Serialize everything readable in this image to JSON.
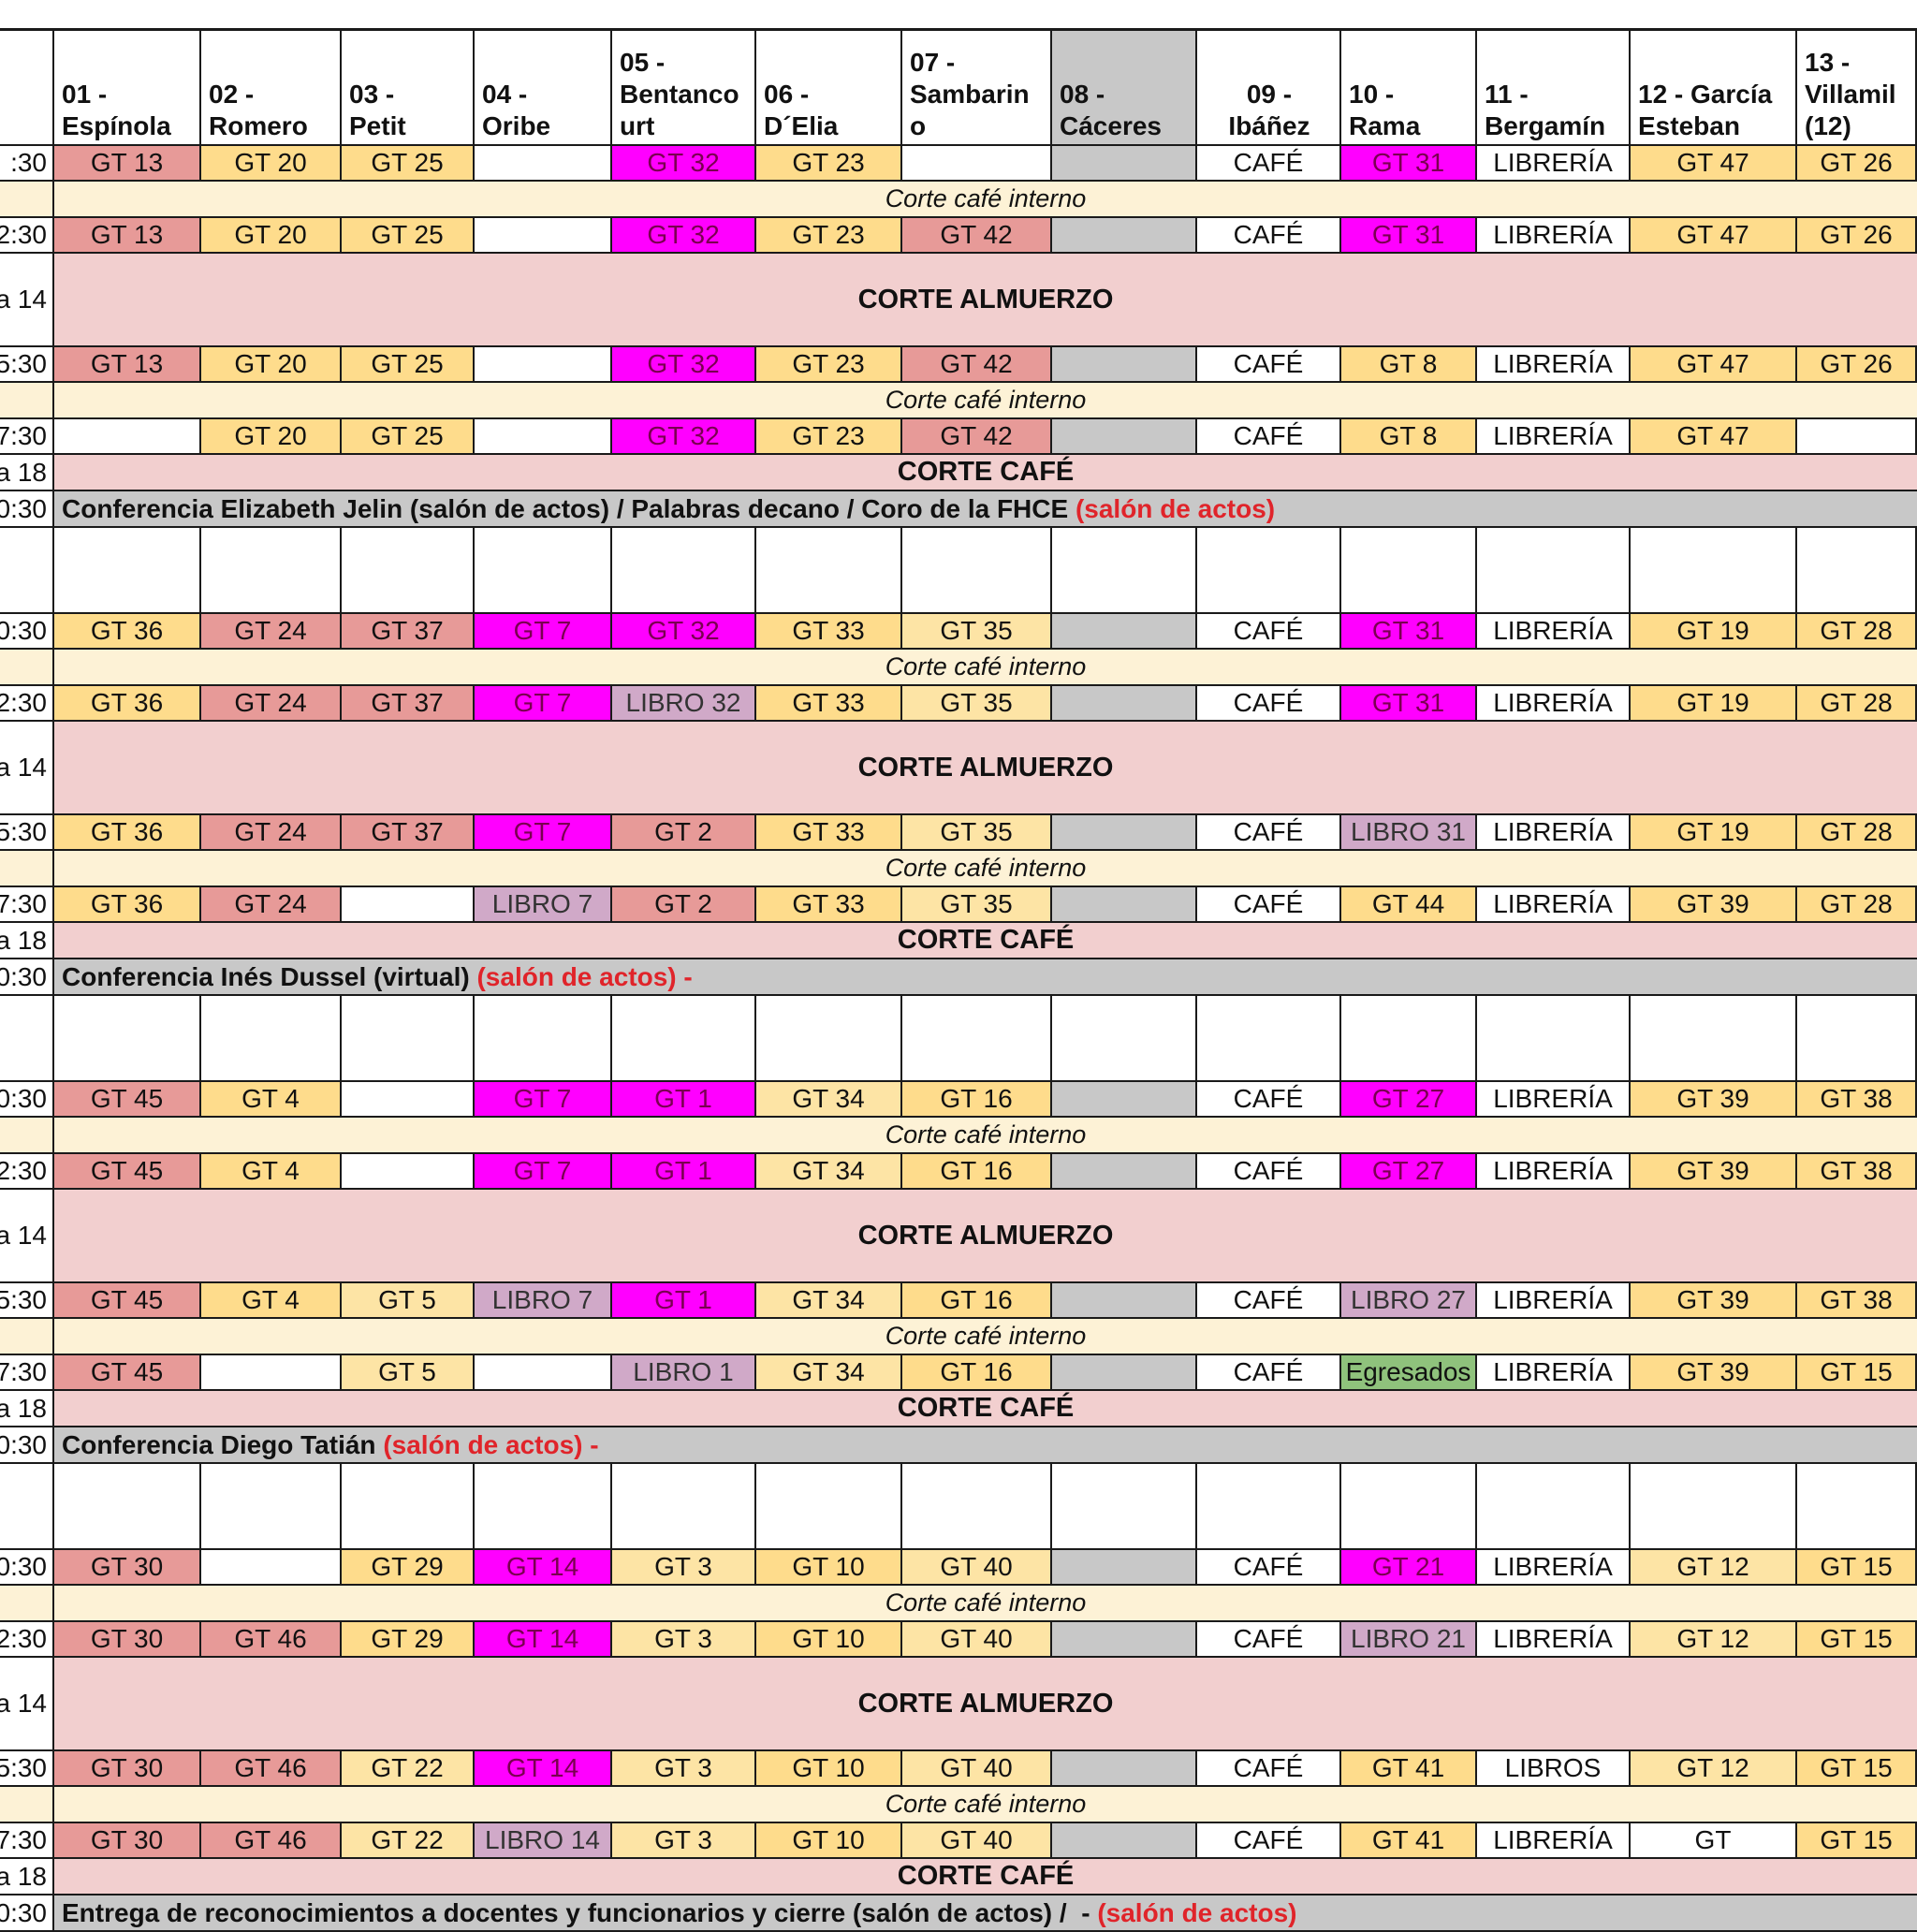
{
  "colors": {
    "gt_salmon": "#e79a98",
    "gt_yellow": "#fedc8c",
    "gt_cream": "#fde4a5",
    "gt_magenta": "#ff00ff",
    "libro_mauve": "#d0a9c8",
    "egresados_green": "#8fc27c",
    "grey": "#c8c8c8",
    "pink_band": "#f2cfcf",
    "cream_band": "#fdf2d6",
    "white": "#ffffff"
  },
  "header": {
    "columns": [
      "01 - Espínola",
      "02 - Romero",
      "03 - Petit",
      "04 - Oribe",
      "05 - Bentancourt",
      "06 - D´Elia",
      "07 - Sambarino",
      "08 - Cáceres",
      "09 - Ibáñez",
      "10 - Rama",
      "11 - Bergamín",
      "12 - García Esteban",
      "13 - Villamil (12)"
    ],
    "lines": [
      [
        "",
        "01 -",
        "Espínola"
      ],
      [
        "",
        "02 -",
        "Romero"
      ],
      [
        "",
        "03 -",
        "Petit"
      ],
      [
        "",
        "04 -",
        "Oribe"
      ],
      [
        "05 -",
        "Bentanco",
        "urt"
      ],
      [
        "",
        "06 -",
        "D´Elia"
      ],
      [
        "07 -",
        "Sambarin",
        "o"
      ],
      [
        "",
        "08 -",
        "Cáceres"
      ],
      [
        "",
        "09 -",
        "Ibáñez"
      ],
      [
        "",
        "10 -",
        "Rama"
      ],
      [
        "",
        "11 -",
        "Bergamín"
      ],
      [
        "",
        "12 - García",
        "Esteban"
      ],
      [
        "13 -",
        "Villamil",
        "(12)"
      ]
    ]
  },
  "rows": [
    {
      "kind": "cells",
      "time": ":30",
      "cells": [
        [
          "GT 13",
          "s"
        ],
        [
          "GT 20",
          "y"
        ],
        [
          "GT 25",
          "y"
        ],
        [
          "",
          "w"
        ],
        [
          "GT 32",
          "m"
        ],
        [
          "GT 23",
          "y"
        ],
        [
          "",
          "w"
        ],
        [
          "",
          "g"
        ],
        [
          "CAFÉ",
          "w"
        ],
        [
          "GT 31",
          "m"
        ],
        [
          "LIBRERÍA",
          "w"
        ],
        [
          "GT 47",
          "y"
        ],
        [
          "GT 26",
          "y"
        ]
      ]
    },
    {
      "kind": "band",
      "style": "italic",
      "text": "Corte café interno"
    },
    {
      "kind": "cells",
      "time": "2:30",
      "cells": [
        [
          "GT 13",
          "s"
        ],
        [
          "GT 20",
          "y"
        ],
        [
          "GT 25",
          "y"
        ],
        [
          "",
          "w"
        ],
        [
          "GT 32",
          "m"
        ],
        [
          "GT 23",
          "y"
        ],
        [
          "GT 42",
          "s"
        ],
        [
          "",
          "g"
        ],
        [
          "CAFÉ",
          "w"
        ],
        [
          "GT 31",
          "m"
        ],
        [
          "LIBRERÍA",
          "w"
        ],
        [
          "GT 47",
          "y"
        ],
        [
          "GT 26",
          "y"
        ]
      ]
    },
    {
      "kind": "band",
      "style": "bold",
      "time": "a 14",
      "text": "CORTE ALMUERZO"
    },
    {
      "kind": "cells",
      "time": "5:30",
      "cells": [
        [
          "GT 13",
          "s"
        ],
        [
          "GT 20",
          "y"
        ],
        [
          "GT 25",
          "y"
        ],
        [
          "",
          "w"
        ],
        [
          "GT 32",
          "m"
        ],
        [
          "GT 23",
          "y"
        ],
        [
          "GT 42",
          "s"
        ],
        [
          "",
          "g"
        ],
        [
          "CAFÉ",
          "w"
        ],
        [
          "GT 8",
          "y"
        ],
        [
          "LIBRERÍA",
          "w"
        ],
        [
          "GT 47",
          "y"
        ],
        [
          "GT 26",
          "y"
        ]
      ]
    },
    {
      "kind": "band",
      "style": "italic",
      "text": "Corte café interno"
    },
    {
      "kind": "cells",
      "time": "7:30",
      "cells": [
        [
          "",
          "w"
        ],
        [
          "GT 20",
          "y"
        ],
        [
          "GT 25",
          "y"
        ],
        [
          "",
          "w"
        ],
        [
          "GT 32",
          "m"
        ],
        [
          "GT 23",
          "y"
        ],
        [
          "GT 42",
          "s"
        ],
        [
          "",
          "g"
        ],
        [
          "CAFÉ",
          "w"
        ],
        [
          "GT 8",
          "y"
        ],
        [
          "LIBRERÍA",
          "w"
        ],
        [
          "GT 47",
          "y"
        ],
        [
          "",
          "w"
        ]
      ]
    },
    {
      "kind": "band",
      "style": "bold",
      "time": "a 18",
      "text": "CORTE CAFÉ"
    },
    {
      "kind": "conf",
      "time": "0:30",
      "text": "Conferencia Elizabeth Jelin (salón de actos) / Palabras decano / Coro de la FHCE ",
      "red": "(salón de actos)"
    },
    {
      "kind": "blank"
    },
    {
      "kind": "cells",
      "time": "0:30",
      "cells": [
        [
          "GT 36",
          "y"
        ],
        [
          "GT 24",
          "s"
        ],
        [
          "GT 37",
          "s"
        ],
        [
          "GT 7",
          "m"
        ],
        [
          "GT 32",
          "m"
        ],
        [
          "GT 33",
          "y"
        ],
        [
          "GT 35",
          "c"
        ],
        [
          "",
          "g"
        ],
        [
          "CAFÉ",
          "w"
        ],
        [
          "GT 31",
          "m"
        ],
        [
          "LIBRERÍA",
          "w"
        ],
        [
          "GT 19",
          "y"
        ],
        [
          "GT 28",
          "y"
        ]
      ]
    },
    {
      "kind": "band",
      "style": "italic",
      "text": "Corte café interno"
    },
    {
      "kind": "cells",
      "time": "2:30",
      "cells": [
        [
          "GT 36",
          "y"
        ],
        [
          "GT 24",
          "s"
        ],
        [
          "GT 37",
          "s"
        ],
        [
          "GT 7",
          "m"
        ],
        [
          "LIBRO 32",
          "l"
        ],
        [
          "GT 33",
          "y"
        ],
        [
          "GT 35",
          "c"
        ],
        [
          "",
          "g"
        ],
        [
          "CAFÉ",
          "w"
        ],
        [
          "GT 31",
          "m"
        ],
        [
          "LIBRERÍA",
          "w"
        ],
        [
          "GT 19",
          "y"
        ],
        [
          "GT 28",
          "y"
        ]
      ]
    },
    {
      "kind": "band",
      "style": "bold",
      "time": "a 14",
      "text": "CORTE ALMUERZO"
    },
    {
      "kind": "cells",
      "time": "5:30",
      "cells": [
        [
          "GT 36",
          "y"
        ],
        [
          "GT 24",
          "s"
        ],
        [
          "GT 37",
          "s"
        ],
        [
          "GT 7",
          "m"
        ],
        [
          "GT 2",
          "s"
        ],
        [
          "GT 33",
          "y"
        ],
        [
          "GT 35",
          "c"
        ],
        [
          "",
          "g"
        ],
        [
          "CAFÉ",
          "w"
        ],
        [
          "LIBRO 31",
          "l"
        ],
        [
          "LIBRERÍA",
          "w"
        ],
        [
          "GT 19",
          "y"
        ],
        [
          "GT 28",
          "y"
        ]
      ]
    },
    {
      "kind": "band",
      "style": "italic",
      "text": "Corte café interno"
    },
    {
      "kind": "cells",
      "time": "7:30",
      "cells": [
        [
          "GT 36",
          "y"
        ],
        [
          "GT 24",
          "s"
        ],
        [
          "",
          "w"
        ],
        [
          "LIBRO 7",
          "l"
        ],
        [
          "GT 2",
          "s"
        ],
        [
          "GT 33",
          "y"
        ],
        [
          "GT 35",
          "c"
        ],
        [
          "",
          "g"
        ],
        [
          "CAFÉ",
          "w"
        ],
        [
          "GT 44",
          "y"
        ],
        [
          "LIBRERÍA",
          "w"
        ],
        [
          "GT 39",
          "y"
        ],
        [
          "GT 28",
          "y"
        ]
      ]
    },
    {
      "kind": "band",
      "style": "bold",
      "time": "a 18",
      "text": "CORTE CAFÉ"
    },
    {
      "kind": "conf",
      "time": "0:30",
      "text": "Conferencia Inés Dussel (virtual) ",
      "red": "(salón de actos) -"
    },
    {
      "kind": "blank"
    },
    {
      "kind": "cells",
      "time": "0:30",
      "cells": [
        [
          "GT 45",
          "s"
        ],
        [
          "GT 4",
          "y"
        ],
        [
          "",
          "w"
        ],
        [
          "GT 7",
          "m"
        ],
        [
          "GT 1",
          "m"
        ],
        [
          "GT 34",
          "c"
        ],
        [
          "GT 16",
          "y"
        ],
        [
          "",
          "g"
        ],
        [
          "CAFÉ",
          "w"
        ],
        [
          "GT 27",
          "m"
        ],
        [
          "LIBRERÍA",
          "w"
        ],
        [
          "GT 39",
          "y"
        ],
        [
          "GT 38",
          "y"
        ]
      ]
    },
    {
      "kind": "band",
      "style": "italic",
      "text": "Corte café interno"
    },
    {
      "kind": "cells",
      "time": "2:30",
      "cells": [
        [
          "GT 45",
          "s"
        ],
        [
          "GT 4",
          "y"
        ],
        [
          "",
          "w"
        ],
        [
          "GT 7",
          "m"
        ],
        [
          "GT 1",
          "m"
        ],
        [
          "GT 34",
          "c"
        ],
        [
          "GT 16",
          "y"
        ],
        [
          "",
          "g"
        ],
        [
          "CAFÉ",
          "w"
        ],
        [
          "GT 27",
          "m"
        ],
        [
          "LIBRERÍA",
          "w"
        ],
        [
          "GT 39",
          "y"
        ],
        [
          "GT 38",
          "y"
        ]
      ]
    },
    {
      "kind": "band",
      "style": "bold",
      "time": "a 14",
      "text": "CORTE ALMUERZO"
    },
    {
      "kind": "cells",
      "time": "5:30",
      "cells": [
        [
          "GT 45",
          "s"
        ],
        [
          "GT 4",
          "y"
        ],
        [
          "GT 5",
          "c"
        ],
        [
          "LIBRO 7",
          "l"
        ],
        [
          "GT 1",
          "m"
        ],
        [
          "GT 34",
          "c"
        ],
        [
          "GT 16",
          "y"
        ],
        [
          "",
          "g"
        ],
        [
          "CAFÉ",
          "w"
        ],
        [
          "LIBRO 27",
          "l"
        ],
        [
          "LIBRERÍA",
          "w"
        ],
        [
          "GT 39",
          "y"
        ],
        [
          "GT 38",
          "y"
        ]
      ]
    },
    {
      "kind": "band",
      "style": "italic",
      "text": "Corte café interno"
    },
    {
      "kind": "cells",
      "time": "7:30",
      "cells": [
        [
          "GT 45",
          "s"
        ],
        [
          "",
          "w"
        ],
        [
          "GT 5",
          "c"
        ],
        [
          "",
          "w"
        ],
        [
          "LIBRO 1",
          "l"
        ],
        [
          "GT 34",
          "c"
        ],
        [
          "GT 16",
          "y"
        ],
        [
          "",
          "g"
        ],
        [
          "CAFÉ",
          "w"
        ],
        [
          "Egresados",
          "e"
        ],
        [
          "LIBRERÍA",
          "w"
        ],
        [
          "GT 39",
          "y"
        ],
        [
          "GT 15",
          "y"
        ]
      ]
    },
    {
      "kind": "band",
      "style": "bold",
      "time": "a 18",
      "text": "CORTE CAFÉ"
    },
    {
      "kind": "conf",
      "time": "0:30",
      "text": "Conferencia Diego Tatián ",
      "red": "(salón de actos) -"
    },
    {
      "kind": "blank"
    },
    {
      "kind": "cells",
      "time": "0:30",
      "cells": [
        [
          "GT 30",
          "s"
        ],
        [
          "",
          "w"
        ],
        [
          "GT 29",
          "y"
        ],
        [
          "GT 14",
          "m"
        ],
        [
          "GT 3",
          "c"
        ],
        [
          "GT 10",
          "y"
        ],
        [
          "GT 40",
          "c"
        ],
        [
          "",
          "g"
        ],
        [
          "CAFÉ",
          "w"
        ],
        [
          "GT 21",
          "m"
        ],
        [
          "LIBRERÍA",
          "w"
        ],
        [
          "GT 12",
          "c"
        ],
        [
          "GT 15",
          "y"
        ]
      ]
    },
    {
      "kind": "band",
      "style": "italic",
      "text": "Corte café interno"
    },
    {
      "kind": "cells",
      "time": "2:30",
      "cells": [
        [
          "GT 30",
          "s"
        ],
        [
          "GT 46",
          "s"
        ],
        [
          "GT 29",
          "y"
        ],
        [
          "GT 14",
          "m"
        ],
        [
          "GT 3",
          "c"
        ],
        [
          "GT 10",
          "y"
        ],
        [
          "GT 40",
          "c"
        ],
        [
          "",
          "g"
        ],
        [
          "CAFÉ",
          "w"
        ],
        [
          "LIBRO 21",
          "l"
        ],
        [
          "LIBRERÍA",
          "w"
        ],
        [
          "GT 12",
          "c"
        ],
        [
          "GT 15",
          "y"
        ]
      ]
    },
    {
      "kind": "band",
      "style": "bold",
      "time": "a 14",
      "text": "CORTE ALMUERZO"
    },
    {
      "kind": "cells",
      "time": "5:30",
      "cells": [
        [
          "GT 30",
          "s"
        ],
        [
          "GT 46",
          "s"
        ],
        [
          "GT 22",
          "c"
        ],
        [
          "GT 14",
          "m"
        ],
        [
          "GT 3",
          "c"
        ],
        [
          "GT 10",
          "y"
        ],
        [
          "GT 40",
          "c"
        ],
        [
          "",
          "g"
        ],
        [
          "CAFÉ",
          "w"
        ],
        [
          "GT 41",
          "y"
        ],
        [
          "LIBROS",
          "w"
        ],
        [
          "GT 12",
          "c"
        ],
        [
          "GT 15",
          "y"
        ]
      ]
    },
    {
      "kind": "band",
      "style": "italic",
      "text": "Corte café interno"
    },
    {
      "kind": "cells",
      "time": "7:30",
      "cells": [
        [
          "GT 30",
          "s"
        ],
        [
          "GT 46",
          "s"
        ],
        [
          "GT 22",
          "c"
        ],
        [
          "LIBRO 14",
          "l"
        ],
        [
          "GT 3",
          "c"
        ],
        [
          "GT 10",
          "y"
        ],
        [
          "GT 40",
          "c"
        ],
        [
          "",
          "g"
        ],
        [
          "CAFÉ",
          "w"
        ],
        [
          "GT 41",
          "y"
        ],
        [
          "LIBRERÍA",
          "w"
        ],
        [
          "GT",
          "w"
        ],
        [
          "GT 15",
          "y"
        ]
      ]
    },
    {
      "kind": "band",
      "style": "bold",
      "time": "a 18",
      "text": "CORTE CAFÉ"
    },
    {
      "kind": "conf",
      "time": "0:30",
      "text": "Entrega de reconocimientos a docentes y funcionarios y cierre (salón de actos) /  - ",
      "red": "(salón de actos)"
    }
  ]
}
